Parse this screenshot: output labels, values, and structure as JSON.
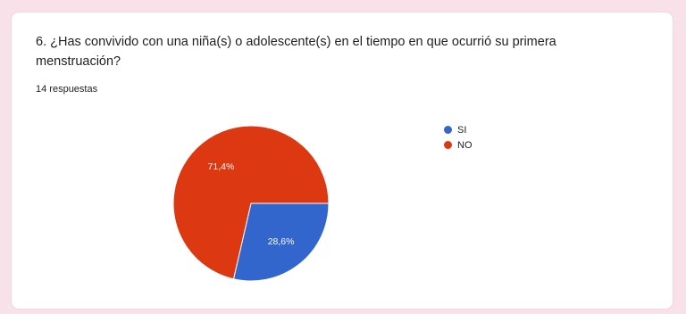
{
  "question": {
    "line1": "6. ¿Has convivido con una niña(s) o adolescente(s) en el tiempo en que ocurrió su primera",
    "line2": "menstruación?"
  },
  "responses_label": "14 respuestas",
  "colors": {
    "si": "#3366cc",
    "no": "#dc3912"
  },
  "chart_data": {
    "type": "pie",
    "title": "6. ¿Has convivido con una niña(s) o adolescente(s) en el tiempo en que ocurrió su primera menstruación?",
    "categories": [
      "SI",
      "NO"
    ],
    "values": [
      28.6,
      71.4
    ],
    "data_labels": [
      "28,6%",
      "71,4%"
    ],
    "legend": "right"
  }
}
